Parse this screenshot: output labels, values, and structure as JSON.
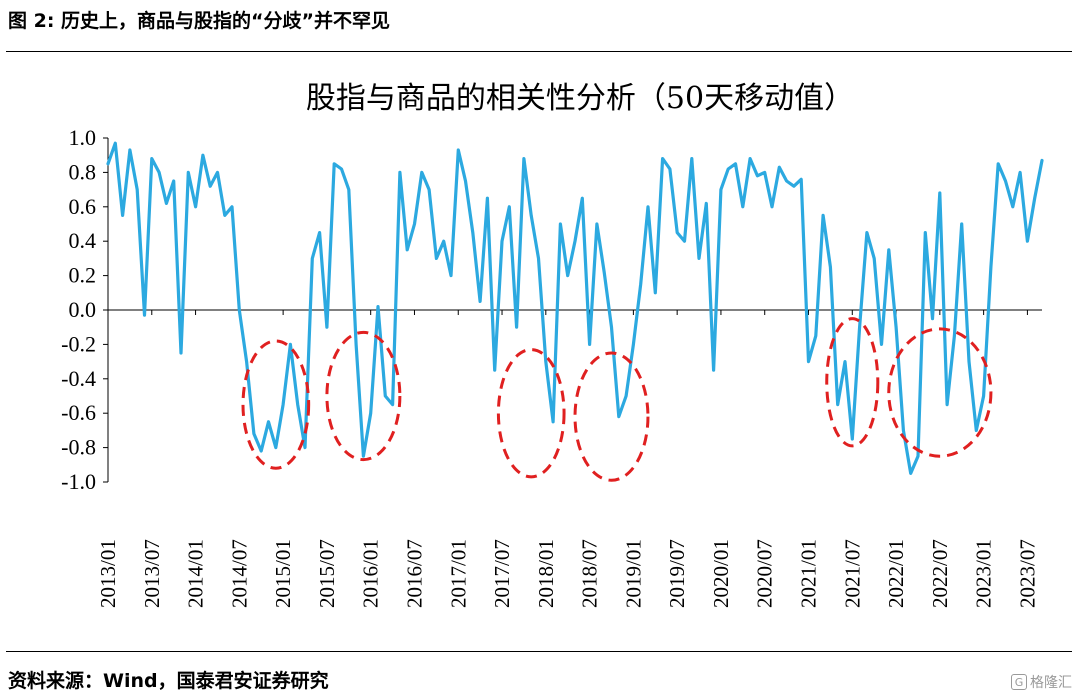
{
  "caption": "图 2:  历史上，商品与股指的“分歧”并不罕见",
  "source": "资料来源：Wind，国泰君安证券研究",
  "watermark": {
    "icon": "G",
    "text": "格隆汇"
  },
  "colors": {
    "line": "#2CA9E0",
    "ellipse": "#E02020",
    "axis": "#000000"
  },
  "chart_data": {
    "type": "line",
    "title": "股指与商品的相关性分析（50天移动值）",
    "xlabel": "",
    "ylabel": "",
    "ylim": [
      -1.0,
      1.0
    ],
    "yticks": [
      "1.0",
      "0.8",
      "0.6",
      "0.4",
      "0.2",
      "0.0",
      "-0.2",
      "-0.4",
      "-0.6",
      "-0.8",
      "-1.0"
    ],
    "grid": false,
    "legend": "none",
    "x_start": "2013/01",
    "x_end": "2023/09",
    "xticks": [
      "2013/01",
      "2013/07",
      "2014/01",
      "2014/07",
      "2015/01",
      "2015/07",
      "2016/01",
      "2016/07",
      "2017/01",
      "2017/07",
      "2018/01",
      "2018/07",
      "2019/01",
      "2019/07",
      "2020/01",
      "2020/07",
      "2021/01",
      "2021/07",
      "2022/01",
      "2022/07",
      "2023/01",
      "2023/07"
    ],
    "series": [
      {
        "x": [
          "2013/01",
          "2013/02",
          "2013/03",
          "2013/04",
          "2013/05",
          "2013/06",
          "2013/07",
          "2013/08",
          "2013/09",
          "2013/10",
          "2013/11",
          "2013/12",
          "2014/01",
          "2014/02",
          "2014/03",
          "2014/04",
          "2014/05",
          "2014/06",
          "2014/07",
          "2014/08",
          "2014/09",
          "2014/10",
          "2014/11",
          "2014/12",
          "2015/01",
          "2015/02",
          "2015/03",
          "2015/04",
          "2015/05",
          "2015/06",
          "2015/07",
          "2015/08",
          "2015/09",
          "2015/10",
          "2015/11",
          "2015/12",
          "2016/01",
          "2016/02",
          "2016/03",
          "2016/04",
          "2016/05",
          "2016/06",
          "2016/07",
          "2016/08",
          "2016/09",
          "2016/10",
          "2016/11",
          "2016/12",
          "2017/01",
          "2017/02",
          "2017/03",
          "2017/04",
          "2017/05",
          "2017/06",
          "2017/07",
          "2017/08",
          "2017/09",
          "2017/10",
          "2017/11",
          "2017/12",
          "2018/01",
          "2018/02",
          "2018/03",
          "2018/04",
          "2018/05",
          "2018/06",
          "2018/07",
          "2018/08",
          "2018/09",
          "2018/10",
          "2018/11",
          "2018/12",
          "2019/01",
          "2019/02",
          "2019/03",
          "2019/04",
          "2019/05",
          "2019/06",
          "2019/07",
          "2019/08",
          "2019/09",
          "2019/10",
          "2019/11",
          "2019/12",
          "2020/01",
          "2020/02",
          "2020/03",
          "2020/04",
          "2020/05",
          "2020/06",
          "2020/07",
          "2020/08",
          "2020/09",
          "2020/10",
          "2020/11",
          "2020/12",
          "2021/01",
          "2021/02",
          "2021/03",
          "2021/04",
          "2021/05",
          "2021/06",
          "2021/07",
          "2021/08",
          "2021/09",
          "2021/10",
          "2021/11",
          "2021/12",
          "2022/01",
          "2022/02",
          "2022/03",
          "2022/04",
          "2022/05",
          "2022/06",
          "2022/07",
          "2022/08",
          "2022/09",
          "2022/10",
          "2022/11",
          "2022/12",
          "2023/01",
          "2023/02",
          "2023/03",
          "2023/04",
          "2023/05",
          "2023/06",
          "2023/07",
          "2023/08",
          "2023/09"
        ],
        "values": [
          0.85,
          0.97,
          0.55,
          0.93,
          0.7,
          -0.03,
          0.88,
          0.8,
          0.62,
          0.75,
          -0.25,
          0.8,
          0.6,
          0.9,
          0.72,
          0.8,
          0.55,
          0.6,
          0.0,
          -0.3,
          -0.72,
          -0.82,
          -0.65,
          -0.8,
          -0.55,
          -0.2,
          -0.55,
          -0.8,
          0.3,
          0.45,
          -0.1,
          0.85,
          0.82,
          0.7,
          -0.2,
          -0.85,
          -0.6,
          0.02,
          -0.5,
          -0.55,
          0.8,
          0.35,
          0.5,
          0.8,
          0.7,
          0.3,
          0.4,
          0.2,
          0.93,
          0.75,
          0.45,
          0.05,
          0.65,
          -0.35,
          0.4,
          0.6,
          -0.1,
          0.88,
          0.55,
          0.3,
          -0.3,
          -0.65,
          0.5,
          0.2,
          0.4,
          0.65,
          -0.2,
          0.5,
          0.22,
          -0.1,
          -0.62,
          -0.5,
          -0.2,
          0.15,
          0.6,
          0.1,
          0.88,
          0.82,
          0.45,
          0.4,
          0.88,
          0.3,
          0.62,
          -0.35,
          0.7,
          0.82,
          0.85,
          0.6,
          0.88,
          0.78,
          0.8,
          0.6,
          0.83,
          0.75,
          0.72,
          0.76,
          -0.3,
          -0.15,
          0.55,
          0.25,
          -0.55,
          -0.3,
          -0.75,
          -0.1,
          0.45,
          0.3,
          -0.2,
          0.35,
          -0.1,
          -0.7,
          -0.95,
          -0.85,
          0.45,
          -0.05,
          0.68,
          -0.55,
          -0.15,
          0.5,
          -0.3,
          -0.7,
          -0.5,
          0.25,
          0.85,
          0.75,
          0.6,
          0.8,
          0.4,
          0.65,
          0.87
        ]
      }
    ],
    "annotations": [
      {
        "type": "ellipse",
        "x_center": "2014/12",
        "y_center": -0.55,
        "x_radius_months": 4.5,
        "y_radius": 0.37
      },
      {
        "type": "ellipse",
        "x_center": "2015/12",
        "y_center": -0.5,
        "x_radius_months": 5.0,
        "y_radius": 0.37
      },
      {
        "type": "ellipse",
        "x_center": "2017/11",
        "y_center": -0.6,
        "x_radius_months": 4.5,
        "y_radius": 0.37
      },
      {
        "type": "ellipse",
        "x_center": "2018/10",
        "y_center": -0.62,
        "x_radius_months": 5.0,
        "y_radius": 0.37
      },
      {
        "type": "ellipse",
        "x_center": "2021/07",
        "y_center": -0.42,
        "x_radius_months": 3.5,
        "y_radius": 0.37
      },
      {
        "type": "ellipse",
        "x_center": "2022/07",
        "y_center": -0.48,
        "x_radius_months": 7.0,
        "y_radius": 0.37
      }
    ]
  }
}
